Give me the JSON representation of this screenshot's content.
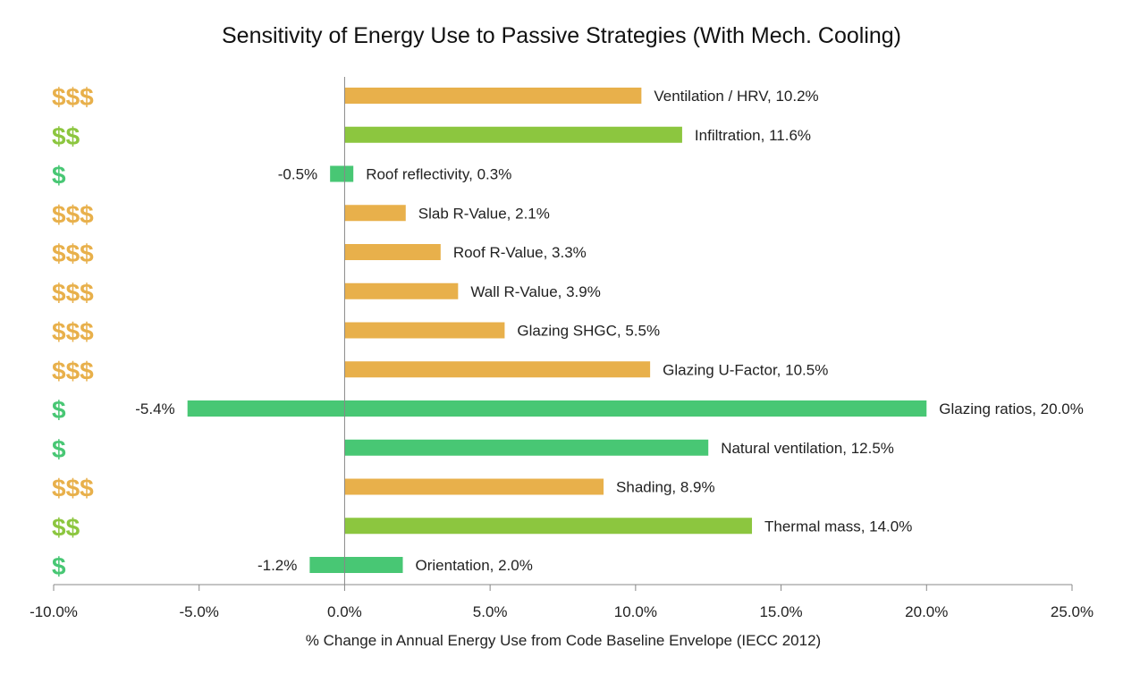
{
  "chart_data": {
    "type": "bar",
    "title": "Sensitivity of Energy Use to Passive Strategies (With Mech. Cooling)",
    "xlabel": "% Change in Annual Energy Use from Code Baseline Envelope (IECC 2012)",
    "xlim": [
      -10,
      25
    ],
    "xticks": [
      -10,
      -5,
      0,
      5,
      10,
      15,
      20,
      25
    ],
    "xtick_labels": [
      "-10.0%",
      "-5.0%",
      "0.0%",
      "5.0%",
      "10.0%",
      "15.0%",
      "20.0%",
      "25.0%"
    ],
    "grid": false,
    "orientation": "horizontal",
    "colors": {
      "$": "#48c774",
      "$$": "#8cc63f",
      "$$$": "#e8b04b"
    },
    "bars": [
      {
        "strategy": "Ventilation / HRV",
        "cost": "$$$",
        "low": 0,
        "high": 10.2,
        "label": "Ventilation / HRV, 10.2%",
        "neg_label": ""
      },
      {
        "strategy": "Infiltration",
        "cost": "$$",
        "low": 0,
        "high": 11.6,
        "label": "Infiltration, 11.6%",
        "neg_label": ""
      },
      {
        "strategy": "Roof reflectivity",
        "cost": "$",
        "low": -0.5,
        "high": 0.3,
        "label": "Roof reflectivity, 0.3%",
        "neg_label": "-0.5%"
      },
      {
        "strategy": "Slab R-Value",
        "cost": "$$$",
        "low": 0,
        "high": 2.1,
        "label": "Slab R-Value, 2.1%",
        "neg_label": ""
      },
      {
        "strategy": "Roof R-Value",
        "cost": "$$$",
        "low": 0,
        "high": 3.3,
        "label": "Roof R-Value, 3.3%",
        "neg_label": ""
      },
      {
        "strategy": "Wall R-Value",
        "cost": "$$$",
        "low": 0,
        "high": 3.9,
        "label": "Wall R-Value, 3.9%",
        "neg_label": ""
      },
      {
        "strategy": "Glazing SHGC",
        "cost": "$$$",
        "low": 0,
        "high": 5.5,
        "label": "Glazing SHGC, 5.5%",
        "neg_label": ""
      },
      {
        "strategy": "Glazing U-Factor",
        "cost": "$$$",
        "low": 0,
        "high": 10.5,
        "label": "Glazing U-Factor, 10.5%",
        "neg_label": ""
      },
      {
        "strategy": "Glazing ratios",
        "cost": "$",
        "low": -5.4,
        "high": 20.0,
        "label": "Glazing ratios, 20.0%",
        "neg_label": "-5.4%"
      },
      {
        "strategy": "Natural ventilation",
        "cost": "$",
        "low": 0,
        "high": 12.5,
        "label": "Natural ventilation, 12.5%",
        "neg_label": ""
      },
      {
        "strategy": "Shading",
        "cost": "$$$",
        "low": 0,
        "high": 8.9,
        "label": "Shading, 8.9%",
        "neg_label": ""
      },
      {
        "strategy": "Thermal mass",
        "cost": "$$",
        "low": 0,
        "high": 14.0,
        "label": "Thermal mass, 14.0%",
        "neg_label": ""
      },
      {
        "strategy": "Orientation",
        "cost": "$",
        "low": -1.2,
        "high": 2.0,
        "label": "Orientation, 2.0%",
        "neg_label": "-1.2%"
      }
    ]
  }
}
